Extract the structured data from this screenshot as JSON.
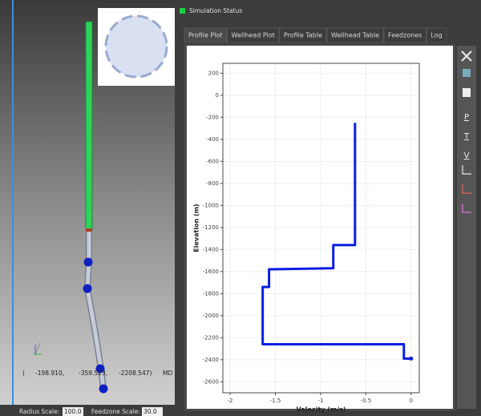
{
  "status": {
    "title": "Simulation Status"
  },
  "tabs": [
    "Profile Plot",
    "Wellhead Plot",
    "Profile Table",
    "Wellhead Table",
    "Feedzones",
    "Log"
  ],
  "toolbar": [
    "P",
    "T",
    "V"
  ],
  "view3d": {
    "coordinates": [
      "(",
      "-198.910,",
      "-359.523,",
      "-2208.547)",
      "MD"
    ],
    "radius_label": "Radius Scale:",
    "radius_value": "100.0",
    "feedzone_label": "Feedzone Scale:",
    "feedzone_value": "30.0"
  },
  "chart_data": {
    "type": "line",
    "x": [
      -0.62,
      -0.62,
      -0.86,
      -0.86,
      -1.57,
      -1.57,
      -1.64,
      -1.64,
      -0.08,
      -0.08,
      0
    ],
    "series": [
      {
        "color": "#0a1ee0",
        "values": [
          -250,
          -1360,
          -1360,
          -1570,
          -1580,
          -1740,
          -1740,
          -2260,
          -2260,
          -2390,
          -2390
        ]
      }
    ],
    "xlabel": "Velocity (m/s)",
    "ylabel": "Elevation (m)",
    "xlim": [
      -2.08,
      0.09
    ],
    "xticks": [
      -2,
      -1.5,
      -1,
      -0.5,
      0
    ],
    "ylim": [
      -2700,
      290
    ],
    "yticks": [
      200,
      0,
      -200,
      -400,
      -600,
      -800,
      -1000,
      -1200,
      -1400,
      -1600,
      -1800,
      -2000,
      -2200,
      -2400,
      -2600
    ],
    "grid": true
  }
}
